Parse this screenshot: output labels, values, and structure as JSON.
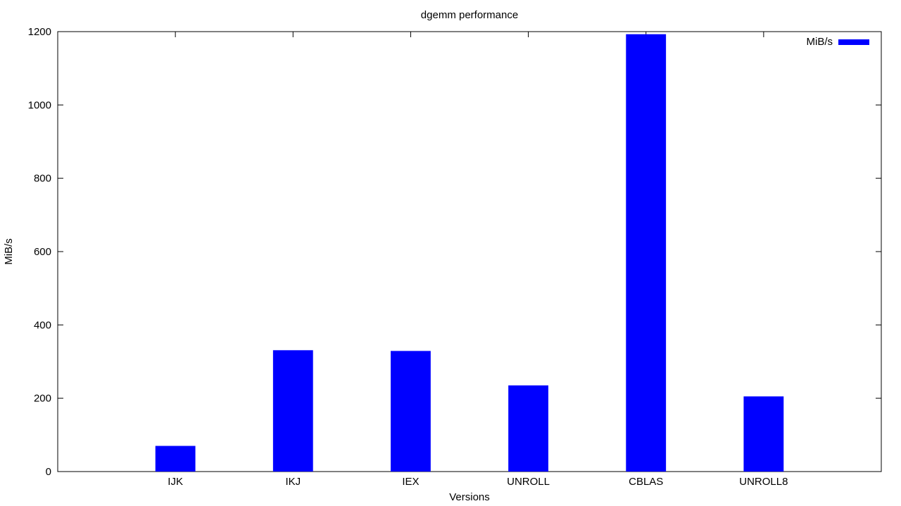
{
  "chart_data": {
    "type": "bar",
    "title": "dgemm performance",
    "xlabel": "Versions",
    "ylabel": "MiB/s",
    "categories": [
      "IJK",
      "IKJ",
      "IEX",
      "UNROLL",
      "CBLAS",
      "UNROLL8"
    ],
    "series": [
      {
        "name": "MiB/s",
        "values": [
          70,
          331,
          329,
          235,
          1193,
          205
        ],
        "color": "#0000ff"
      }
    ],
    "ylim": [
      0,
      1200
    ],
    "yticks": [
      0,
      200,
      400,
      600,
      800,
      1000,
      1200
    ],
    "xlim": [
      -1,
      6
    ],
    "grid": false,
    "legend_position": "top-right"
  }
}
